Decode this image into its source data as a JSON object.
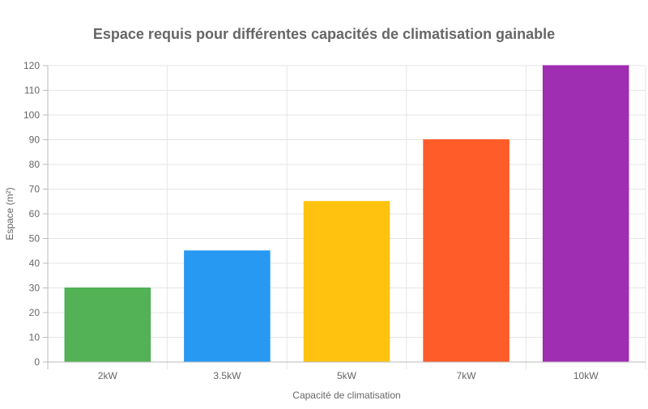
{
  "chart_data": {
    "type": "bar",
    "title": "Espace requis pour différentes capacités de climatisation gainable",
    "xlabel": "Capacité de climatisation",
    "ylabel": "Espace (m²)",
    "categories": [
      "2kW",
      "3.5kW",
      "5kW",
      "7kW",
      "10kW"
    ],
    "values": [
      30,
      45,
      65,
      90,
      120
    ],
    "colors": [
      "#4caf50",
      "#2196f3",
      "#ffc107",
      "#ff5722",
      "#9c27b0"
    ],
    "ylim": [
      0,
      120
    ],
    "yticks": [
      0,
      10,
      20,
      30,
      40,
      50,
      60,
      70,
      80,
      90,
      100,
      110,
      120
    ],
    "grid": true,
    "legend": "none"
  }
}
